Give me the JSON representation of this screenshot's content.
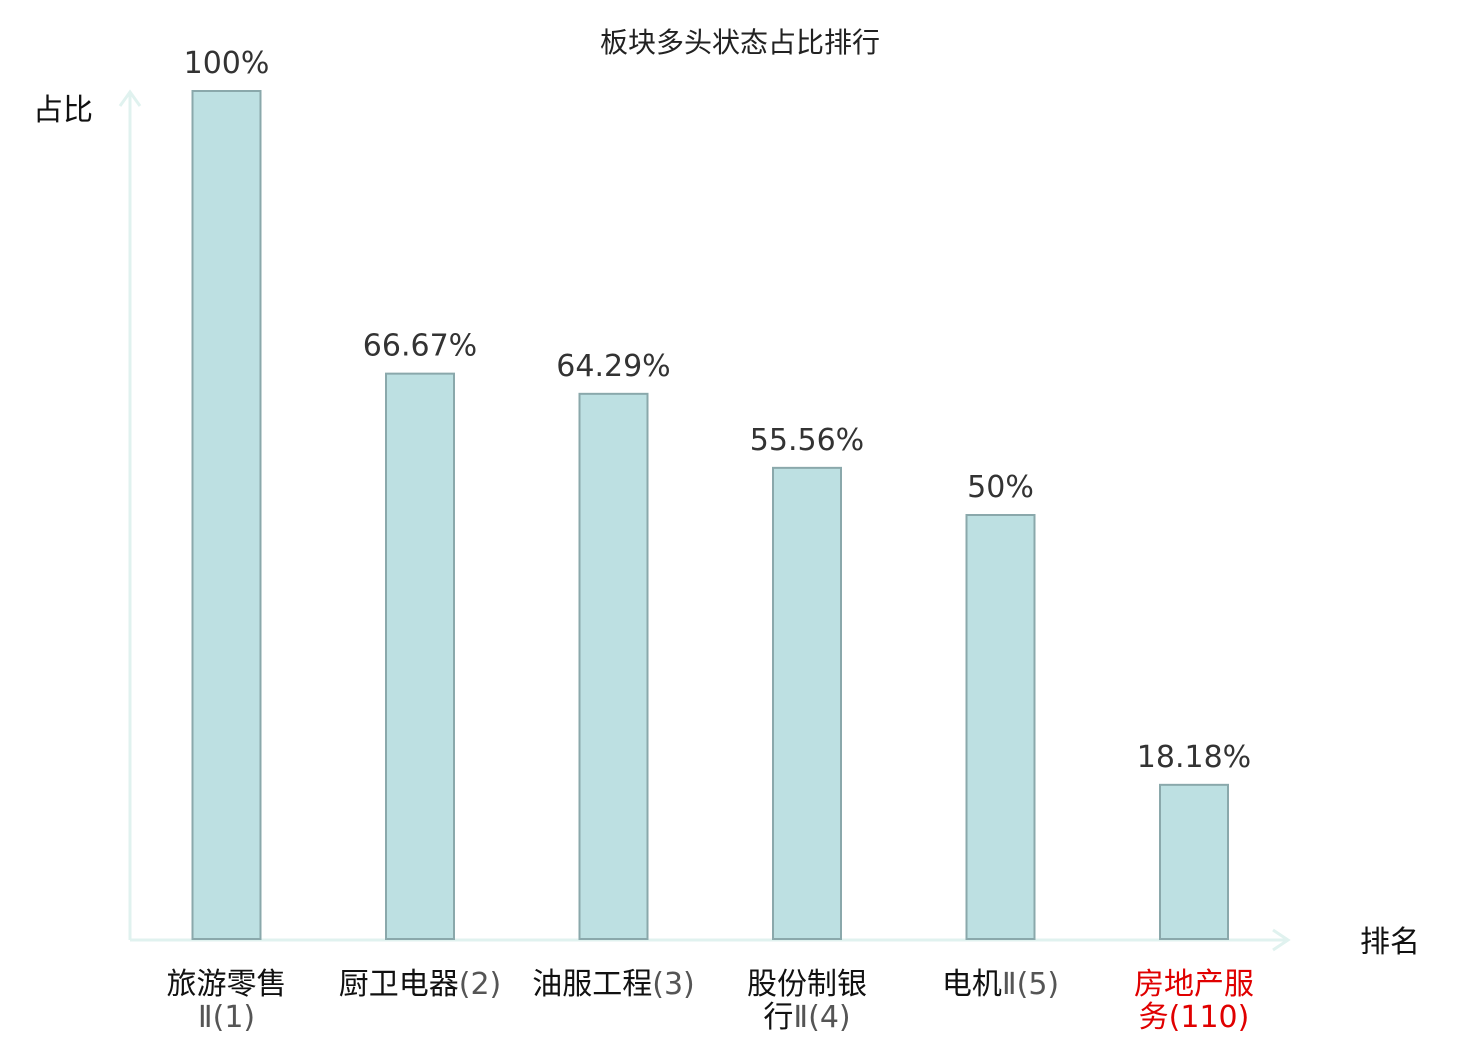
{
  "chart_data": {
    "type": "bar",
    "title": "板块多头状态占比排行",
    "ylabel": "占比",
    "xlabel": "排名",
    "ylim": [
      0,
      100
    ],
    "grid": false,
    "categories": [
      {
        "lines": [
          {
            "name": "旅游零售",
            "rank": ""
          },
          {
            "name": "",
            "rank": "Ⅱ(1)"
          }
        ],
        "highlight": false
      },
      {
        "lines": [
          {
            "name": "厨卫电器",
            "rank": "(2)"
          }
        ],
        "highlight": false
      },
      {
        "lines": [
          {
            "name": "油服工程",
            "rank": "(3)"
          }
        ],
        "highlight": false
      },
      {
        "lines": [
          {
            "name": "股份制银",
            "rank": ""
          },
          {
            "name": "行",
            "rank": "Ⅱ(4)"
          }
        ],
        "highlight": false
      },
      {
        "lines": [
          {
            "name": "电机",
            "rank": "Ⅱ(5)"
          }
        ],
        "highlight": false
      },
      {
        "lines": [
          {
            "name": "房地产服",
            "rank": ""
          },
          {
            "name": "务",
            "rank": "(110)"
          }
        ],
        "highlight": true
      }
    ],
    "values": [
      100,
      66.67,
      64.29,
      55.56,
      50,
      18.18
    ],
    "value_labels": [
      "100%",
      "66.67%",
      "64.29%",
      "55.56%",
      "50%",
      "18.18%"
    ],
    "colors": {
      "bar_fill": "#bde0e2",
      "bar_stroke": "#8aa8ab",
      "axis": "#e0f2ef",
      "highlight": "#e00000"
    }
  }
}
